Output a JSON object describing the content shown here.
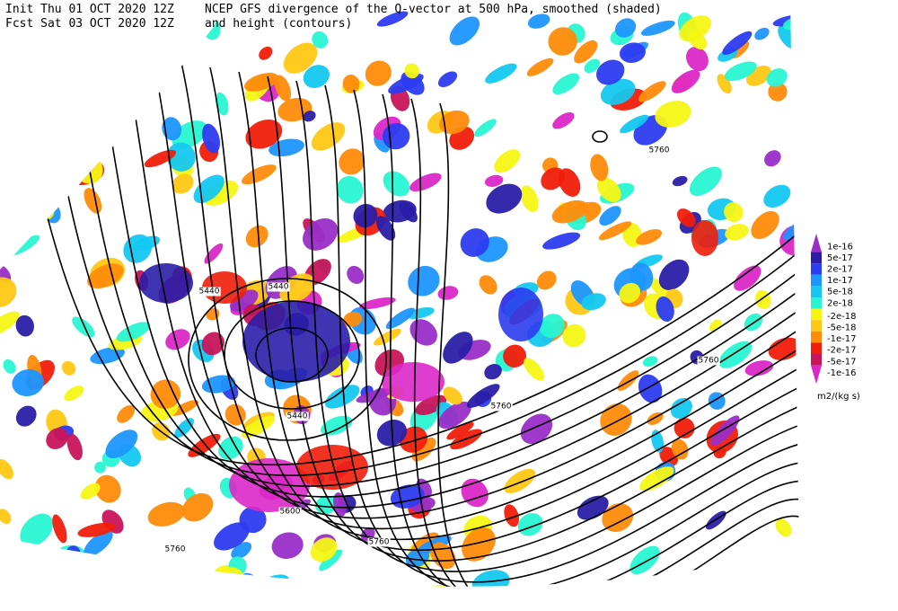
{
  "header": {
    "init": "Init  Thu 01 OCT 2020 12Z",
    "fcst": "Fcst Sat 03 OCT 2020 12Z",
    "title": "NCEP GFS divergence of the Q-vector at 500 hPa, smoothed (shaded)",
    "subtitle": "and height (contours)"
  },
  "contour_labels": [
    "5440",
    "5440",
    "5440",
    "5600",
    "5760",
    "5760",
    "5760",
    "5760",
    "5760"
  ],
  "legend": {
    "levels": [
      {
        "label": "1e-16",
        "color": "#9a2ec8"
      },
      {
        "label": "5e-17",
        "color": "#2a1ea8"
      },
      {
        "label": "2e-17",
        "color": "#2c3cf0"
      },
      {
        "label": "1e-17",
        "color": "#1e96ff"
      },
      {
        "label": "5e-18",
        "color": "#14c8f0"
      },
      {
        "label": "2e-18",
        "color": "#28f5d2"
      },
      {
        "label": "-2e-18",
        "color": "#f5f514"
      },
      {
        "label": "-5e-18",
        "color": "#ffc814"
      },
      {
        "label": "-1e-17",
        "color": "#ff8c0a"
      },
      {
        "label": "-2e-17",
        "color": "#f01e0a"
      },
      {
        "label": "-5e-17",
        "color": "#c8145a"
      },
      {
        "label": "-1e-16",
        "color": "#dc28c8"
      }
    ],
    "units": "m2/(kg s)"
  }
}
